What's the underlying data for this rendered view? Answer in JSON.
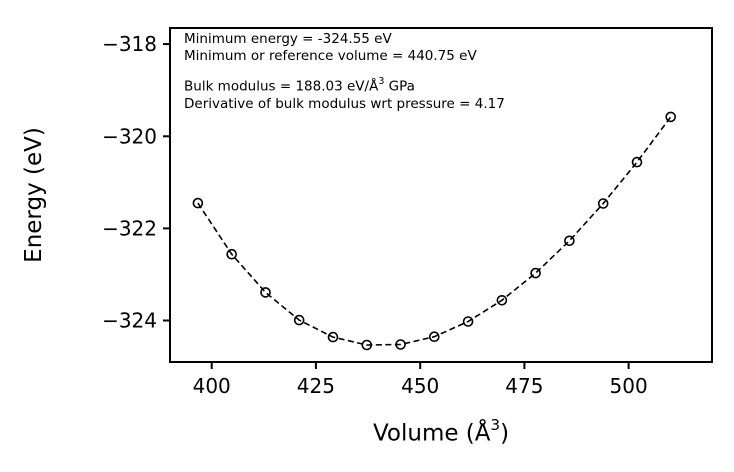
{
  "figure": {
    "background": "#ffffff",
    "line_color": "#000000"
  },
  "chart_data": {
    "type": "scatter",
    "title": "",
    "ylabel": "Energy (eV)",
    "xlabel": {
      "pre": "Volume (Å",
      "sup": "3",
      "post": ")"
    },
    "x": [
      396.7,
      404.8,
      412.9,
      421.0,
      429.1,
      437.2,
      445.3,
      453.4,
      461.5,
      469.6,
      477.7,
      485.8,
      493.9,
      502.0,
      510.1
    ],
    "y": [
      -321.45,
      -322.56,
      -323.39,
      -323.99,
      -324.36,
      -324.53,
      -324.52,
      -324.35,
      -324.02,
      -323.56,
      -322.97,
      -322.27,
      -321.46,
      -320.56,
      -319.58
    ],
    "x_ticks": [
      400,
      425,
      450,
      475,
      500
    ],
    "y_ticks": [
      -318,
      -320,
      -322,
      -324
    ],
    "xlim": [
      390,
      520
    ],
    "ylim": [
      -324.9,
      -317.65
    ],
    "grid": false,
    "legend": null,
    "line_style": "dashed",
    "marker": "open-circle",
    "series_color": "#000000",
    "annotation": {
      "line1": "Minimum energy = -324.55 eV",
      "line2": "Minimum or reference volume = 440.75 eV",
      "line3_pre": "Bulk modulus = 188.03 eV/Å",
      "line3_sup": "3",
      "line3_post": " GPa",
      "line4": "Derivative of bulk modulus wrt pressure = 4.17"
    }
  }
}
